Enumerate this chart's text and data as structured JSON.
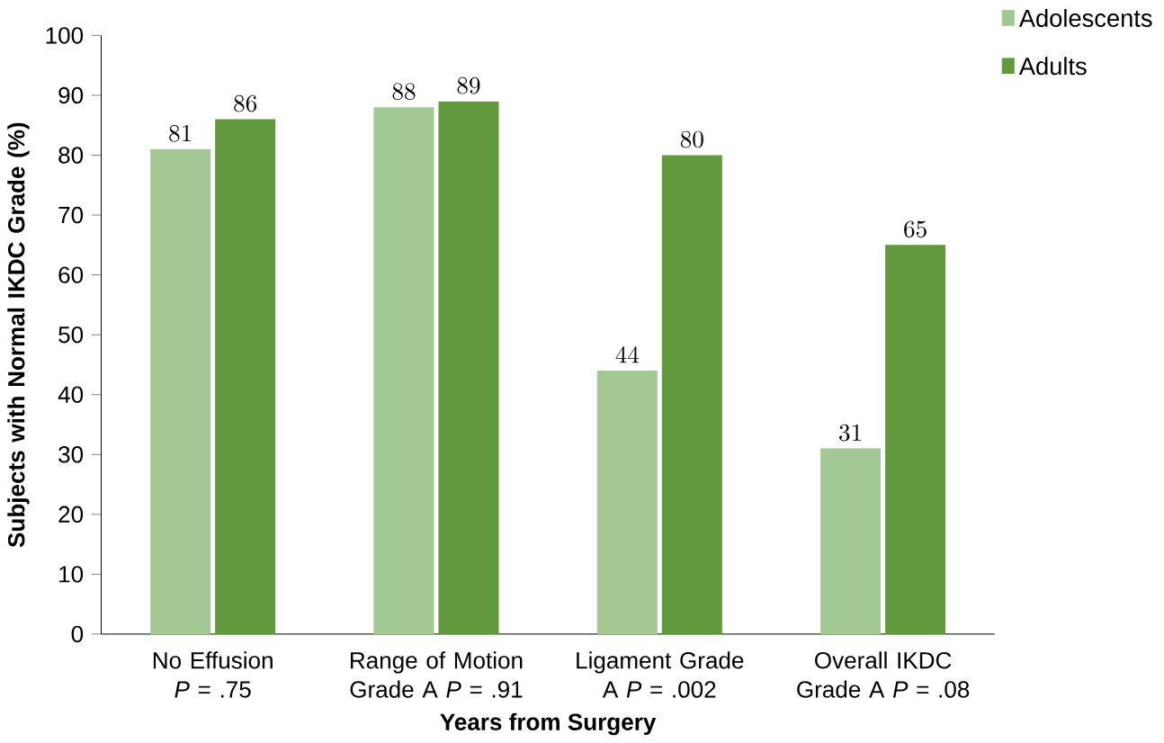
{
  "chart_data": {
    "type": "bar",
    "xlabel": "Years from Surgery",
    "ylabel": "Subjects with Normal IKDC Grade (%)",
    "categories": [
      "No Effusion *P* = .75",
      "Range of Motion Grade A *P* = .91",
      "Ligament Grade A *P* = .002",
      "Overall IKDC Grade A *P* = .08"
    ],
    "series": [
      {
        "name": "Adolescents",
        "color": "#a4c893",
        "values": [
          81,
          88,
          44,
          31
        ]
      },
      {
        "name": "Adults",
        "color": "#62993e",
        "values": [
          86,
          89,
          80,
          65
        ]
      }
    ],
    "ylim": [
      0,
      100
    ],
    "yticks": [
      0,
      10,
      20,
      30,
      40,
      50,
      60,
      70,
      80,
      90,
      100
    ],
    "data_labels": true,
    "legend": "top right",
    "grid": false
  }
}
